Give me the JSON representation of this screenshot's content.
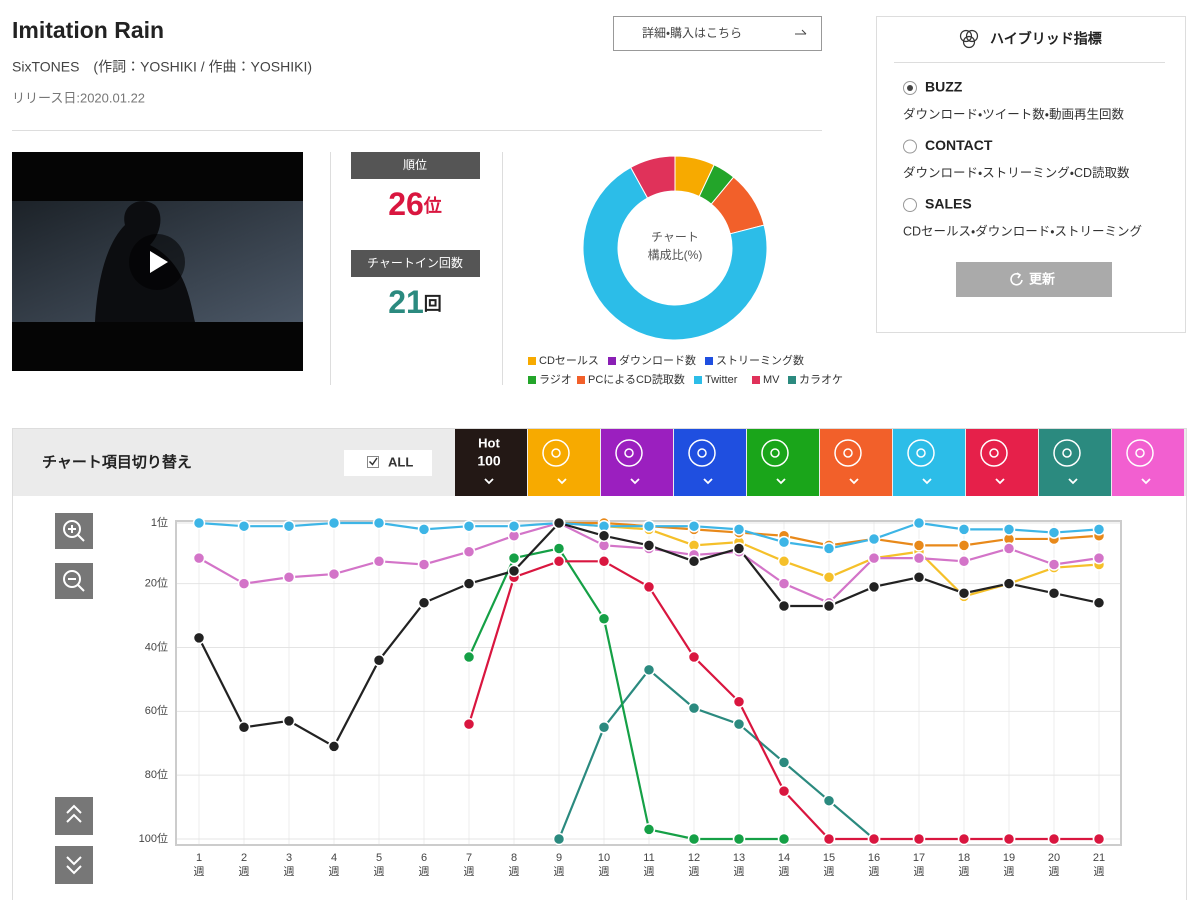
{
  "header": {
    "title": "Imitation Rain",
    "artist": "SixTONES　(作詞：YOSHIKI / 作曲：YOSHIKI)",
    "release": "リリース日:2020.01.22",
    "detail_button": "詳細・購入はこちら"
  },
  "stats": {
    "rank_label": "順位",
    "rank": 26,
    "rank_unit": "位",
    "count_label": "チャートイン回数",
    "count": 21,
    "count_unit": "回"
  },
  "hybrid": {
    "title": "ハイブリッド指標",
    "options": [
      {
        "label": "BUZZ",
        "description": "ダウンロード・ツイート数・動画再生回数",
        "selected": true
      },
      {
        "label": "CONTACT",
        "description": "ダウンロード・ストリーミング・CD読取数",
        "selected": false
      },
      {
        "label": "SALES",
        "description": "CDセールス・ダウンロード・ストリーミング",
        "selected": false
      }
    ],
    "update_button": "更新"
  },
  "chart_switch": {
    "title": "チャート項目切り替え",
    "all_label": "ALL",
    "hot_label": [
      "Hot",
      "100"
    ]
  },
  "chart_data": [
    {
      "type": "pie",
      "center_label": [
        "チャート",
        "構成比(%)"
      ],
      "categories": [
        "CDセールス",
        "ダウンロード数",
        "ストリーミング数",
        "ラジオ",
        "PCによるCD読取数",
        "Twitter",
        "MV",
        "カラオケ"
      ],
      "values": [
        7,
        0,
        0,
        4,
        10,
        71,
        8,
        0
      ],
      "colors": [
        "#f7aa00",
        "#8a1fb5",
        "#1f4fe0",
        "#23a52a",
        "#f2602a",
        "#2cbde8",
        "#e0325a",
        "#2b8a7f"
      ]
    },
    {
      "type": "line",
      "categories": [
        "1",
        "2",
        "3",
        "4",
        "5",
        "6",
        "7",
        "8",
        "9",
        "10",
        "11",
        "12",
        "13",
        "14",
        "15",
        "16",
        "17",
        "18",
        "19",
        "20",
        "21"
      ],
      "x_unit": "週",
      "ylim": [
        1,
        100
      ],
      "y_inverted": true,
      "yticks": [
        {
          "value": 1,
          "label": "1位"
        },
        {
          "value": 20,
          "label": "20位"
        },
        {
          "value": 40,
          "label": "40位"
        },
        {
          "value": 60,
          "label": "60位"
        },
        {
          "value": 80,
          "label": "80位"
        },
        {
          "value": 100,
          "label": "100位"
        }
      ],
      "grid": true,
      "series": [
        {
          "color": "#2b8a7f",
          "values": [
            null,
            null,
            null,
            null,
            null,
            null,
            null,
            null,
            100,
            65,
            47,
            59,
            64,
            76,
            88,
            100,
            null,
            null,
            null,
            null,
            null
          ]
        },
        {
          "color": "#15a046",
          "values": [
            null,
            null,
            null,
            null,
            null,
            null,
            43,
            12,
            9,
            31,
            97,
            100,
            100,
            100,
            null,
            null,
            null,
            null,
            100,
            null,
            100
          ]
        },
        {
          "color": "#d9163f",
          "values": [
            null,
            null,
            null,
            null,
            null,
            null,
            64,
            18,
            13,
            13,
            21,
            43,
            57,
            85,
            100,
            100,
            100,
            100,
            100,
            100,
            100
          ]
        },
        {
          "color": "#f5c02a",
          "values": [
            null,
            null,
            null,
            null,
            null,
            null,
            null,
            null,
            1,
            2,
            3,
            8,
            7,
            13,
            18,
            12,
            10,
            24,
            20,
            15,
            14
          ]
        },
        {
          "color": "#e8891a",
          "values": [
            null,
            null,
            null,
            null,
            null,
            null,
            null,
            null,
            1,
            1,
            2,
            3,
            4,
            5,
            8,
            6,
            8,
            8,
            6,
            6,
            5
          ]
        },
        {
          "color": "#d374c8",
          "values": [
            12,
            20,
            18,
            17,
            13,
            14,
            10,
            5,
            1,
            8,
            9,
            11,
            10,
            20,
            26,
            12,
            12,
            13,
            9,
            14,
            12
          ]
        },
        {
          "color": "#3db5e6",
          "values": [
            1,
            2,
            2,
            1,
            1,
            3,
            2,
            2,
            1,
            2,
            2,
            2,
            3,
            7,
            9,
            6,
            1,
            3,
            3,
            4,
            3
          ]
        },
        {
          "color": "#222222",
          "values": [
            37,
            65,
            63,
            71,
            44,
            26,
            20,
            16,
            1,
            5,
            8,
            13,
            9,
            27,
            27,
            21,
            18,
            23,
            20,
            23,
            26
          ]
        }
      ]
    }
  ]
}
